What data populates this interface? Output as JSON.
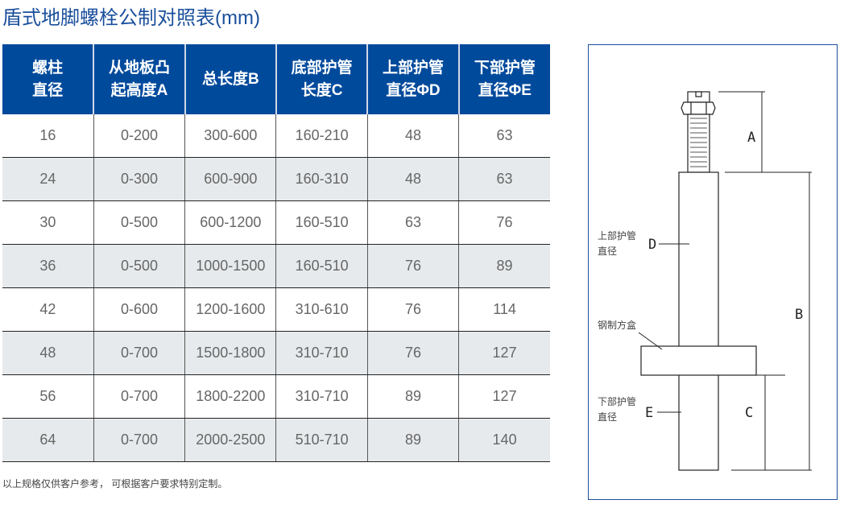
{
  "title": "盾式地脚螺栓公制对照表(mm)",
  "table": {
    "headers": [
      [
        "螺柱",
        "直径"
      ],
      [
        "从地板凸",
        "起高度A"
      ],
      [
        "总长度B"
      ],
      [
        "底部护管",
        "长度C"
      ],
      [
        "上部护管",
        "直径ΦD"
      ],
      [
        "下部护管",
        "直径ΦE"
      ]
    ],
    "rows": [
      [
        "16",
        "0-200",
        "300-600",
        "160-210",
        "48",
        "63"
      ],
      [
        "24",
        "0-300",
        "600-900",
        "160-310",
        "48",
        "63"
      ],
      [
        "30",
        "0-500",
        "600-1200",
        "160-510",
        "63",
        "76"
      ],
      [
        "36",
        "0-500",
        "1000-1500",
        "160-510",
        "76",
        "89"
      ],
      [
        "42",
        "0-600",
        "1200-1600",
        "310-610",
        "76",
        "114"
      ],
      [
        "48",
        "0-700",
        "1500-1800",
        "310-710",
        "76",
        "127"
      ],
      [
        "56",
        "0-700",
        "1800-2200",
        "310-710",
        "89",
        "127"
      ],
      [
        "64",
        "0-700",
        "2000-2500",
        "510-710",
        "89",
        "140"
      ]
    ]
  },
  "note": "以上规格仅供客户参考， 可根据客户要求特别定制。",
  "diagram": {
    "upper_label": [
      "上部护管",
      "直径"
    ],
    "box_label": "钢制方盒",
    "lower_label": [
      "下部护管",
      "直径"
    ],
    "dims": {
      "a": "A",
      "b": "B",
      "c": "C",
      "d": "D",
      "e": "E"
    }
  },
  "colors": {
    "header_bg": "#004a9c",
    "title": "#1a4f9c",
    "alt_row": "#e7eaec"
  }
}
